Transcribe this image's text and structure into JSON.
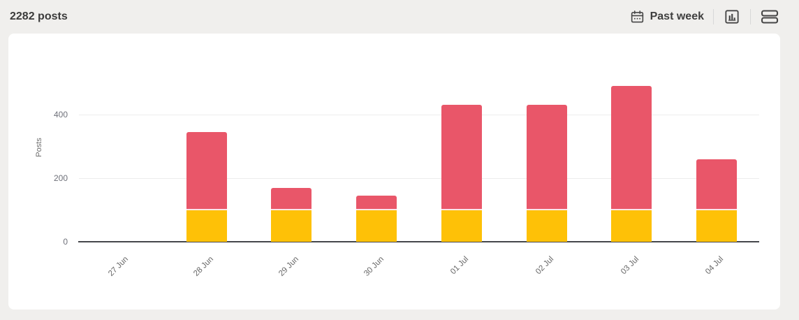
{
  "header": {
    "post_count": "2282 posts"
  },
  "toolbar": {
    "time_range_label": "Past week",
    "icons": [
      "calendar-icon",
      "bar-chart-icon",
      "rows-icon"
    ]
  },
  "chart_data": {
    "type": "bar",
    "stacked": true,
    "title": "",
    "xlabel": "",
    "ylabel": "Posts",
    "categories": [
      "27 Jun",
      "28 Jun",
      "29 Jun",
      "30 Jun",
      "01 Jul",
      "02 Jul",
      "03 Jul",
      "04 Jul"
    ],
    "series": [
      {
        "name": "yellow-segment",
        "color": "#fec107",
        "values": [
          0,
          100,
          100,
          100,
          100,
          100,
          100,
          100
        ]
      },
      {
        "name": "pink-segment",
        "color": "#e95669",
        "values": [
          0,
          245,
          70,
          45,
          330,
          330,
          390,
          160
        ]
      }
    ],
    "totals": [
      0,
      345,
      170,
      145,
      430,
      430,
      490,
      260
    ],
    "yticks": [
      0,
      200,
      400
    ],
    "ylim": [
      0,
      655
    ],
    "grid": true,
    "legend": false,
    "colors": {
      "axis_line": "#45474b",
      "gridline": "#ededed",
      "tick_text": "#6e7079"
    }
  }
}
